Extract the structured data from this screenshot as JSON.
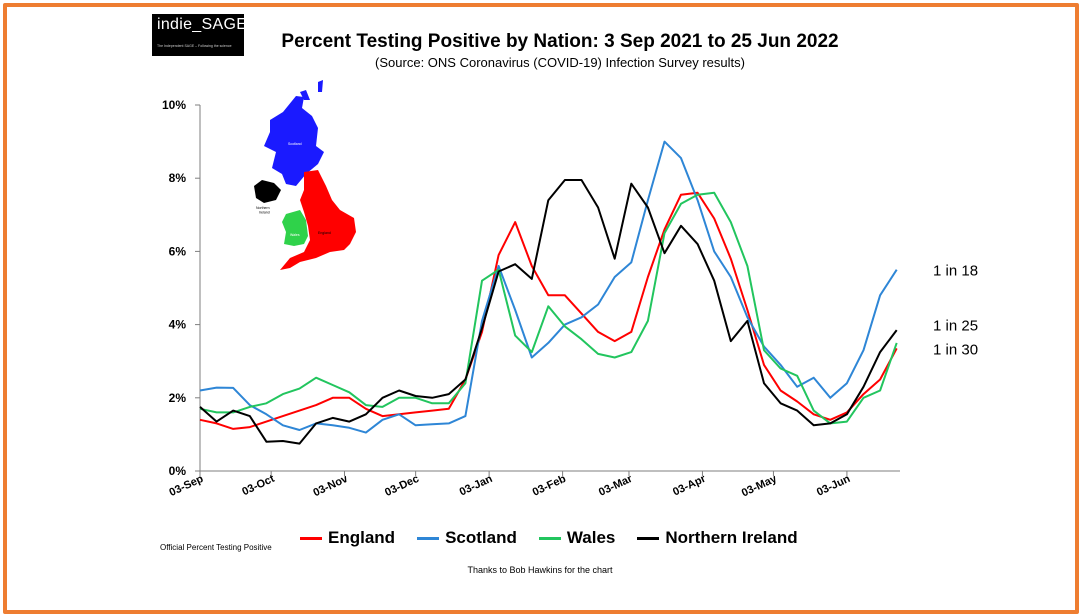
{
  "logo": {
    "text": "indie_SAGE",
    "tagline": "The Independent SAGE – Following the science"
  },
  "title": "Percent Testing Positive by Nation: 3 Sep 2021 to 25 Jun 2022",
  "subtitle": "(Source: ONS Coronavirus (COVID-19) Infection Survey results)",
  "footnote_left": "Official Percent Testing Positive",
  "credit": "Thanks to Bob Hawkins for the chart",
  "map": {
    "labels": {
      "scotland": "Scotland",
      "northern_ireland": "Northern Ireland",
      "wales": "Wales",
      "england": "England"
    }
  },
  "annotations": [
    {
      "text": "1 in 18",
      "y": 5.5
    },
    {
      "text": "1 in 25",
      "y": 4.0
    },
    {
      "text": "1 in 30",
      "y": 3.35
    }
  ],
  "colors": {
    "frame": "#ee7d31",
    "england": "#ff0000",
    "scotland": "#2e86d6",
    "wales": "#22c55e",
    "northern_ireland": "#000000"
  },
  "chart_data": {
    "type": "line",
    "title": "Percent Testing Positive by Nation: 3 Sep 2021 to 25 Jun 2022",
    "x_ticks": [
      "03-Sep",
      "03-Oct",
      "03-Nov",
      "03-Dec",
      "03-Jan",
      "03-Feb",
      "03-Mar",
      "03-Apr",
      "03-May",
      "03-Jun"
    ],
    "x_tick_weeks": [
      0,
      4.29,
      8.71,
      13,
      17.43,
      21.86,
      25.86,
      30.29,
      34.57,
      39
    ],
    "y_ticks": [
      "0%",
      "2%",
      "4%",
      "6%",
      "8%",
      "10%"
    ],
    "ylim": [
      0,
      10
    ],
    "xlim_weeks": [
      0,
      42.2
    ],
    "x_unit": "week commencing",
    "legend_position": "bottom",
    "series": [
      {
        "name": "England",
        "color": "#ff0000",
        "values": [
          1.4,
          1.3,
          1.15,
          1.2,
          1.35,
          1.5,
          1.65,
          1.8,
          2.0,
          2.0,
          1.7,
          1.5,
          1.55,
          1.6,
          1.65,
          1.7,
          2.5,
          3.8,
          5.9,
          6.8,
          5.6,
          4.8,
          4.8,
          4.3,
          3.8,
          3.55,
          3.8,
          5.3,
          6.6,
          7.55,
          7.6,
          6.9,
          5.8,
          4.4,
          2.9,
          2.2,
          1.9,
          1.55,
          1.4,
          1.6,
          2.1,
          2.5,
          3.35
        ]
      },
      {
        "name": "Scotland",
        "color": "#2e86d6",
        "values": [
          2.2,
          2.28,
          2.27,
          1.8,
          1.55,
          1.25,
          1.12,
          1.3,
          1.25,
          1.18,
          1.05,
          1.4,
          1.55,
          1.25,
          1.28,
          1.3,
          1.5,
          4.1,
          5.6,
          4.4,
          3.1,
          3.5,
          4.0,
          4.2,
          4.55,
          5.3,
          5.7,
          7.4,
          9.0,
          8.55,
          7.4,
          6.0,
          5.3,
          4.2,
          3.4,
          2.9,
          2.3,
          2.55,
          2.0,
          2.4,
          3.3,
          4.8,
          5.5
        ]
      },
      {
        "name": "Wales",
        "color": "#22c55e",
        "values": [
          1.7,
          1.6,
          1.6,
          1.75,
          1.85,
          2.1,
          2.25,
          2.55,
          2.35,
          2.15,
          1.8,
          1.75,
          2.0,
          2.0,
          1.85,
          1.85,
          2.4,
          5.2,
          5.5,
          3.7,
          3.25,
          4.5,
          3.95,
          3.6,
          3.2,
          3.1,
          3.25,
          4.1,
          6.5,
          7.3,
          7.55,
          7.6,
          6.8,
          5.6,
          3.3,
          2.8,
          2.6,
          1.65,
          1.3,
          1.35,
          2.0,
          2.2,
          3.5
        ]
      },
      {
        "name": "Northern Ireland",
        "color": "#000000",
        "values": [
          1.75,
          1.35,
          1.65,
          1.5,
          0.8,
          0.82,
          0.75,
          1.3,
          1.45,
          1.35,
          1.55,
          2.0,
          2.2,
          2.05,
          2.0,
          2.1,
          2.5,
          3.9,
          5.45,
          5.65,
          5.25,
          7.4,
          7.95,
          7.95,
          7.2,
          5.8,
          7.85,
          7.2,
          5.95,
          6.7,
          6.2,
          5.2,
          3.55,
          4.1,
          2.4,
          1.85,
          1.65,
          1.25,
          1.3,
          1.55,
          2.3,
          3.25,
          3.85
        ]
      }
    ]
  }
}
